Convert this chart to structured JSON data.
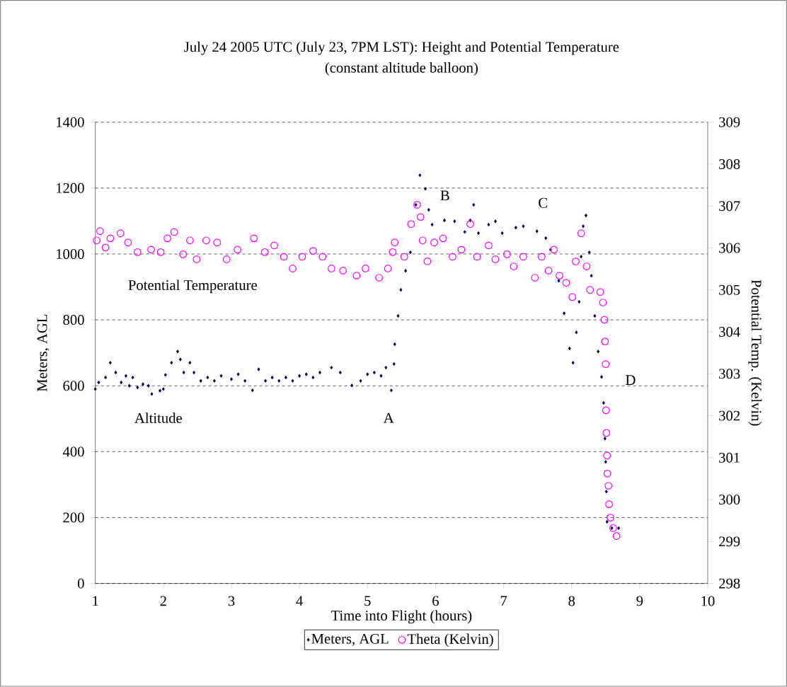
{
  "chart_data": {
    "type": "scatter",
    "title": "July 24 2005 UTC (July 23, 7PM LST): Height and Potential Temperature",
    "subtitle": "(constant altitude balloon)",
    "xlabel": "Time into Flight (hours)",
    "ylabel": "Meters, AGL",
    "y2label": "Potential Temp. (Kelvin)",
    "xlim": [
      1,
      10
    ],
    "xticks": [
      1,
      2,
      3,
      4,
      5,
      6,
      7,
      8,
      9,
      10
    ],
    "ylim": [
      0,
      1400
    ],
    "yticks": [
      0,
      200,
      400,
      600,
      800,
      1000,
      1200,
      1400
    ],
    "y2lim": [
      298,
      309
    ],
    "y2ticks": [
      298,
      299,
      300,
      301,
      302,
      303,
      304,
      305,
      306,
      307,
      308,
      309
    ],
    "grid": "y",
    "legend": "bottom",
    "series": [
      {
        "name": "Meters, AGL",
        "color": "#000066",
        "marker": "diamond",
        "x": [
          1.0,
          1.05,
          1.15,
          1.22,
          1.3,
          1.38,
          1.45,
          1.5,
          1.55,
          1.62,
          1.7,
          1.78,
          1.83,
          1.95,
          2.0,
          2.03,
          2.12,
          2.21,
          2.25,
          2.3,
          2.39,
          2.45,
          2.55,
          2.65,
          2.75,
          2.85,
          3.0,
          3.1,
          3.2,
          3.31,
          3.4,
          3.5,
          3.6,
          3.7,
          3.8,
          3.9,
          4.0,
          4.1,
          4.2,
          4.3,
          4.47,
          4.6,
          4.77,
          4.9,
          5.0,
          5.1,
          5.2,
          5.27,
          5.35,
          5.39,
          5.4,
          5.45,
          5.49,
          5.56,
          5.63,
          5.71,
          5.77,
          5.85,
          5.9,
          5.95,
          6.13,
          6.28,
          6.43,
          6.51,
          6.56,
          6.63,
          6.78,
          6.88,
          6.98,
          7.18,
          7.29,
          7.49,
          7.62,
          7.69,
          7.81,
          7.89,
          7.97,
          8.02,
          8.07,
          8.11,
          8.14,
          8.17,
          8.21,
          8.26,
          8.29,
          8.34,
          8.39,
          8.44,
          8.47,
          8.49,
          8.5,
          8.51,
          8.52,
          8.59,
          8.69
        ],
        "values": [
          590,
          610,
          625,
          670,
          640,
          610,
          630,
          600,
          625,
          595,
          605,
          600,
          575,
          585,
          590,
          633,
          670,
          704,
          680,
          640,
          670,
          640,
          615,
          625,
          615,
          630,
          620,
          635,
          615,
          586,
          650,
          615,
          625,
          615,
          625,
          615,
          630,
          635,
          625,
          640,
          655,
          640,
          601,
          615,
          635,
          640,
          630,
          655,
          586,
          666,
          726,
          812,
          891,
          949,
          1005,
          1149,
          1239,
          1198,
          1134,
          1089,
          1102,
          1099,
          1067,
          1102,
          1149,
          1063,
          1089,
          1099,
          1063,
          1080,
          1084,
          1069,
          1048,
          1013,
          919,
          820,
          713,
          670,
          762,
          855,
          992,
          1084,
          1117,
          1005,
          934,
          812,
          704,
          627,
          548,
          440,
          369,
          279,
          187,
          168,
          168
        ]
      },
      {
        "name": "Theta (Kelvin)",
        "color": "#ff00ff",
        "marker": "circle",
        "axis": "y2",
        "x": [
          1.02,
          1.07,
          1.15,
          1.22,
          1.37,
          1.48,
          1.62,
          1.82,
          1.96,
          2.06,
          2.16,
          2.29,
          2.39,
          2.49,
          2.63,
          2.79,
          2.93,
          3.09,
          3.33,
          3.49,
          3.63,
          3.77,
          3.9,
          4.04,
          4.2,
          4.34,
          4.47,
          4.64,
          4.84,
          4.97,
          5.17,
          5.3,
          5.37,
          5.4,
          5.54,
          5.64,
          5.73,
          5.78,
          5.81,
          5.88,
          5.98,
          6.11,
          6.25,
          6.38,
          6.51,
          6.61,
          6.78,
          6.88,
          7.05,
          7.15,
          7.29,
          7.46,
          7.56,
          7.66,
          7.74,
          7.82,
          7.92,
          8.01,
          8.06,
          8.14,
          8.22,
          8.27,
          8.42,
          8.46,
          8.48,
          8.49,
          8.5,
          8.505,
          8.51,
          8.52,
          8.525,
          8.54,
          8.55,
          8.57,
          8.61,
          8.66
        ],
        "values": [
          306.18,
          306.4,
          306.01,
          306.23,
          306.35,
          306.13,
          305.9,
          305.96,
          305.9,
          306.23,
          306.38,
          305.85,
          306.18,
          305.73,
          306.18,
          306.13,
          305.73,
          305.96,
          306.23,
          305.9,
          306.06,
          305.79,
          305.51,
          305.79,
          305.93,
          305.79,
          305.51,
          305.46,
          305.34,
          305.51,
          305.29,
          305.51,
          305.9,
          306.13,
          305.79,
          306.57,
          307.03,
          306.74,
          306.18,
          305.68,
          306.13,
          306.23,
          305.79,
          305.96,
          306.57,
          305.79,
          306.06,
          305.73,
          305.85,
          305.56,
          305.79,
          305.29,
          305.79,
          305.46,
          305.96,
          305.34,
          305.17,
          304.83,
          305.68,
          306.35,
          305.56,
          305.0,
          304.95,
          304.7,
          304.29,
          303.77,
          303.23,
          302.13,
          301.59,
          301.05,
          300.62,
          300.33,
          299.89,
          299.57,
          299.32,
          299.13
        ]
      }
    ],
    "annotations": [
      "Potential Temperature",
      "Altitude",
      "A",
      "B",
      "C",
      "D"
    ]
  }
}
